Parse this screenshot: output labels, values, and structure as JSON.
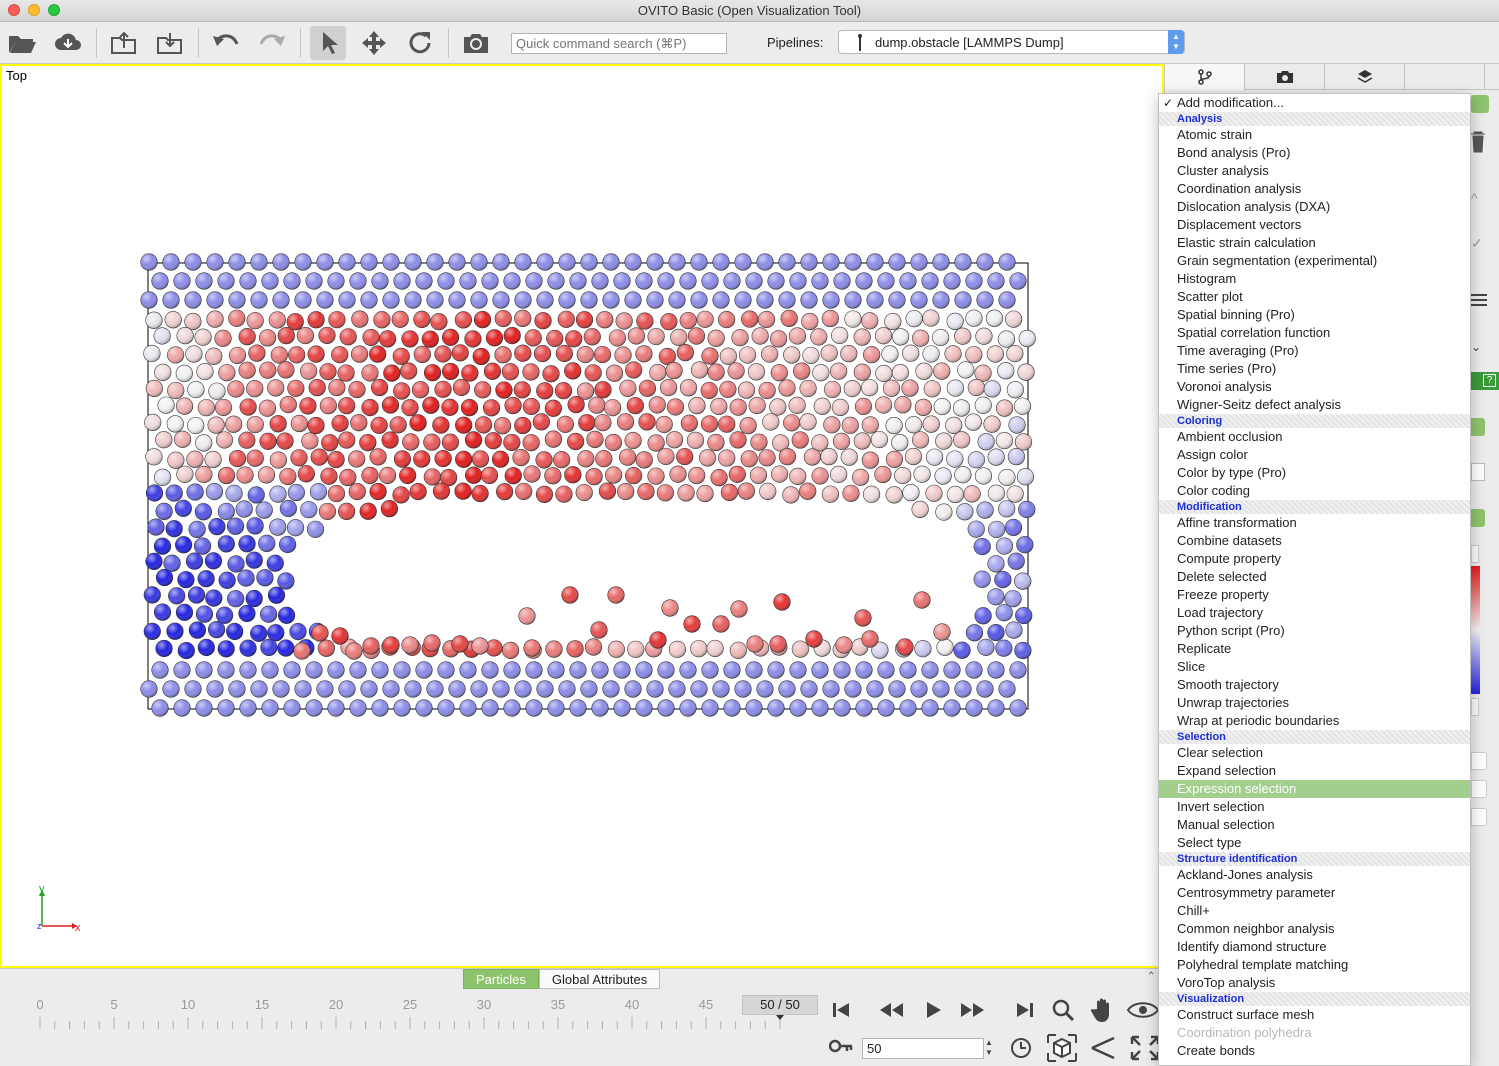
{
  "window": {
    "title": "OVITO Basic (Open Visualization Tool)"
  },
  "toolbar": {
    "buttons": [
      {
        "icon": "open-folder-icon"
      },
      {
        "icon": "cloud-download-icon"
      },
      {
        "icon": "export-icon"
      },
      {
        "icon": "import-icon"
      },
      {
        "icon": "undo-icon"
      },
      {
        "icon": "redo-icon"
      },
      {
        "icon": "select-mode-icon"
      },
      {
        "icon": "move-mode-icon"
      },
      {
        "icon": "rotate-mode-icon"
      },
      {
        "icon": "camera-icon"
      }
    ],
    "search_placeholder": "Quick command search (⌘P)",
    "pipelines_label": "Pipelines:",
    "pipeline_selected": "dump.obstacle [LAMMPS Dump]"
  },
  "viewport": {
    "caption": "Top",
    "axis_x": "x",
    "axis_y": "y",
    "axis_z": "z",
    "colors": {
      "border": "#ffff00",
      "cell_line": "#000000",
      "particle_high": "#e21b1b",
      "particle_mid": "#f3f3f3",
      "particle_low": "#2323e0",
      "wall": "#8c8ce8"
    }
  },
  "right_panel": {
    "tabs": [
      {
        "icon": "pipeline-icon"
      },
      {
        "icon": "render-camera-icon"
      },
      {
        "icon": "layers-icon"
      }
    ]
  },
  "modifier_menu": {
    "entries": [
      {
        "kind": "item",
        "label": "Add modification...",
        "checked": true
      },
      {
        "kind": "cat",
        "label": "Analysis"
      },
      {
        "kind": "item",
        "label": "Atomic strain"
      },
      {
        "kind": "item",
        "label": "Bond analysis (Pro)"
      },
      {
        "kind": "item",
        "label": "Cluster analysis"
      },
      {
        "kind": "item",
        "label": "Coordination analysis"
      },
      {
        "kind": "item",
        "label": "Dislocation analysis (DXA)"
      },
      {
        "kind": "item",
        "label": "Displacement vectors"
      },
      {
        "kind": "item",
        "label": "Elastic strain calculation"
      },
      {
        "kind": "item",
        "label": "Grain segmentation (experimental)"
      },
      {
        "kind": "item",
        "label": "Histogram"
      },
      {
        "kind": "item",
        "label": "Scatter plot"
      },
      {
        "kind": "item",
        "label": "Spatial binning (Pro)"
      },
      {
        "kind": "item",
        "label": "Spatial correlation function"
      },
      {
        "kind": "item",
        "label": "Time averaging (Pro)"
      },
      {
        "kind": "item",
        "label": "Time series (Pro)"
      },
      {
        "kind": "item",
        "label": "Voronoi analysis"
      },
      {
        "kind": "item",
        "label": "Wigner-Seitz defect analysis"
      },
      {
        "kind": "cat",
        "label": "Coloring"
      },
      {
        "kind": "item",
        "label": "Ambient occlusion"
      },
      {
        "kind": "item",
        "label": "Assign color"
      },
      {
        "kind": "item",
        "label": "Color by type (Pro)"
      },
      {
        "kind": "item",
        "label": "Color coding"
      },
      {
        "kind": "cat",
        "label": "Modification"
      },
      {
        "kind": "item",
        "label": "Affine transformation"
      },
      {
        "kind": "item",
        "label": "Combine datasets"
      },
      {
        "kind": "item",
        "label": "Compute property"
      },
      {
        "kind": "item",
        "label": "Delete selected"
      },
      {
        "kind": "item",
        "label": "Freeze property"
      },
      {
        "kind": "item",
        "label": "Load trajectory"
      },
      {
        "kind": "item",
        "label": "Python script (Pro)"
      },
      {
        "kind": "item",
        "label": "Replicate"
      },
      {
        "kind": "item",
        "label": "Slice"
      },
      {
        "kind": "item",
        "label": "Smooth trajectory"
      },
      {
        "kind": "item",
        "label": "Unwrap trajectories"
      },
      {
        "kind": "item",
        "label": "Wrap at periodic boundaries"
      },
      {
        "kind": "cat",
        "label": "Selection"
      },
      {
        "kind": "item",
        "label": "Clear selection"
      },
      {
        "kind": "item",
        "label": "Expand selection"
      },
      {
        "kind": "item",
        "label": "Expression selection",
        "highlighted": true
      },
      {
        "kind": "item",
        "label": "Invert selection"
      },
      {
        "kind": "item",
        "label": "Manual selection"
      },
      {
        "kind": "item",
        "label": "Select type"
      },
      {
        "kind": "cat",
        "label": "Structure identification"
      },
      {
        "kind": "item",
        "label": "Ackland-Jones analysis"
      },
      {
        "kind": "item",
        "label": "Centrosymmetry parameter"
      },
      {
        "kind": "item",
        "label": "Chill+"
      },
      {
        "kind": "item",
        "label": "Common neighbor analysis"
      },
      {
        "kind": "item",
        "label": "Identify diamond structure"
      },
      {
        "kind": "item",
        "label": "Polyhedral template matching"
      },
      {
        "kind": "item",
        "label": "VoroTop analysis"
      },
      {
        "kind": "cat",
        "label": "Visualization"
      },
      {
        "kind": "item",
        "label": "Construct surface mesh"
      },
      {
        "kind": "item",
        "label": "Coordination polyhedra",
        "disabled": true
      },
      {
        "kind": "item",
        "label": "Create bonds"
      }
    ]
  },
  "bottom": {
    "data_tabs": [
      "Particles",
      "Global Attributes"
    ],
    "active_data_tab": "Particles",
    "timeline_labels": [
      "0",
      "5",
      "10",
      "15",
      "20",
      "25",
      "30",
      "35",
      "40",
      "45"
    ],
    "frame_counter": "50 / 50",
    "current_frame": 50,
    "total_frames": 50,
    "frame_input": "50",
    "anim_buttons": [
      "jump-to-start-icon",
      "step-back-icon",
      "play-icon",
      "step-forward-icon",
      "jump-to-end-icon"
    ],
    "view_buttons": [
      "zoom-icon",
      "pan-hand-icon",
      "orbit-eye-icon",
      "zoom-all-icon",
      "fov-icon",
      "maximize-icon"
    ],
    "misc_icons": [
      "animation-key-icon",
      "animation-settings-clock-icon"
    ]
  }
}
